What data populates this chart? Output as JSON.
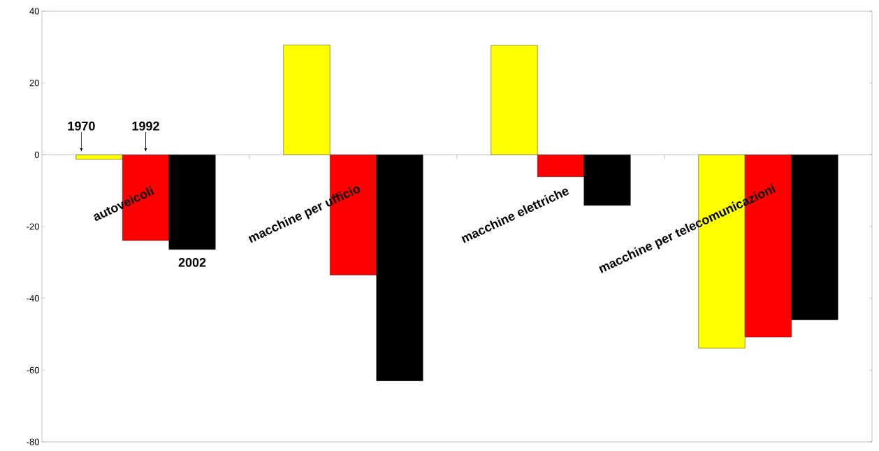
{
  "chart_data": {
    "type": "bar",
    "categories": [
      "autoveicoli",
      "macchine per ufficio",
      "macchine elettriche",
      "macchine per telecomunicazioni"
    ],
    "series": [
      {
        "name": "1970",
        "color": "#ffff00",
        "values": [
          -1.3,
          30.6,
          30.5,
          -53.9
        ]
      },
      {
        "name": "1992",
        "color": "#ff0000",
        "values": [
          -23.9,
          -33.5,
          -6.1,
          -50.8
        ]
      },
      {
        "name": "2002",
        "color": "#000000",
        "values": [
          -26.4,
          -63,
          -14.1,
          -46
        ]
      }
    ],
    "ylim": [
      -80,
      40
    ],
    "yticks": [
      -80,
      -60,
      -40,
      -20,
      0,
      20,
      40
    ],
    "grid": false,
    "legend": false
  }
}
